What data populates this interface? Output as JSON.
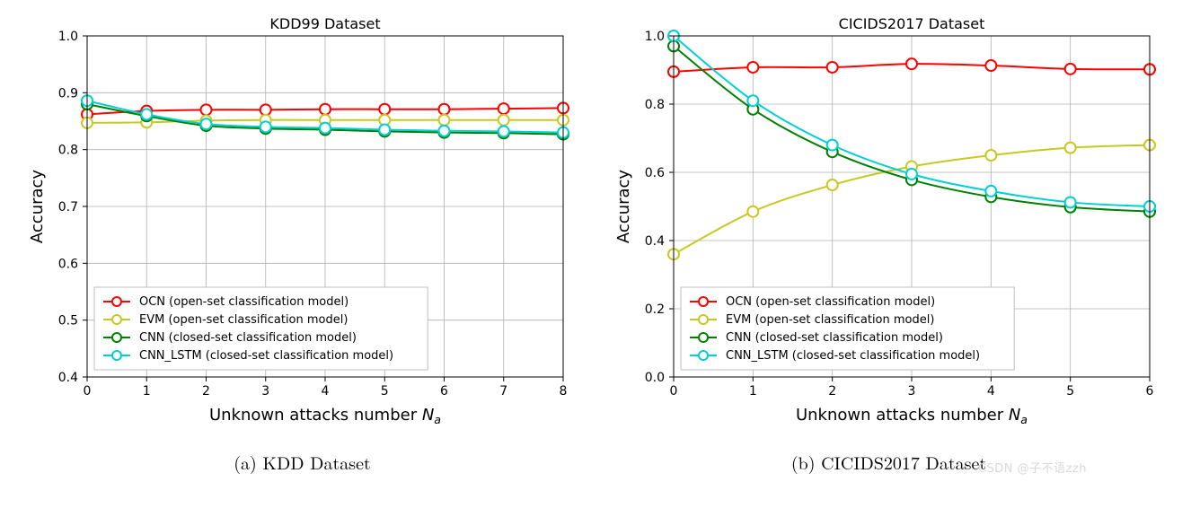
{
  "figure": {
    "background_color": "#ffffff",
    "panels": [
      {
        "id": "kdd",
        "title": "KDD99 Dataset",
        "caption": "(a) KDD Dataset",
        "xlabel_prefix": "Unknown attacks number ",
        "xlabel_var": "N",
        "xlabel_sub": "a",
        "ylabel": "Accuracy",
        "title_fontsize": 16,
        "label_fontsize": 18,
        "tick_fontsize": 14,
        "xlim": [
          0,
          8
        ],
        "ylim": [
          0.4,
          1.0
        ],
        "xticks": [
          0,
          1,
          2,
          3,
          4,
          5,
          6,
          7,
          8
        ],
        "yticks": [
          0.4,
          0.5,
          0.6,
          0.7,
          0.8,
          0.9,
          1.0
        ],
        "ytick_labels": [
          "0.4",
          "0.5",
          "0.6",
          "0.7",
          "0.8",
          "0.9",
          "1.0"
        ],
        "grid_color": "#b0b0b0",
        "grid_width": 0.8,
        "axis_color": "#000000",
        "legend": {
          "position": "lower-left",
          "border_color": "#bfbfbf",
          "background": "#ffffff",
          "fontsize": 13
        },
        "series": [
          {
            "name": "OCN (open-set classification model)",
            "color": "#ff0000",
            "marker": "circle-open",
            "line_width": 2,
            "marker_size": 6,
            "x": [
              0,
              1,
              2,
              3,
              4,
              5,
              6,
              7,
              8
            ],
            "y": [
              0.862,
              0.868,
              0.87,
              0.87,
              0.871,
              0.871,
              0.871,
              0.872,
              0.873
            ]
          },
          {
            "name": "EVM (open-set classification model)",
            "color": "#c8c822",
            "marker": "circle-open",
            "line_width": 2,
            "marker_size": 6,
            "x": [
              0,
              1,
              2,
              3,
              4,
              5,
              6,
              7,
              8
            ],
            "y": [
              0.847,
              0.848,
              0.851,
              0.852,
              0.852,
              0.852,
              0.852,
              0.852,
              0.852
            ]
          },
          {
            "name": "CNN (closed-set classification model)",
            "color": "#008000",
            "marker": "circle-open",
            "line_width": 2,
            "marker_size": 6,
            "x": [
              0,
              1,
              2,
              3,
              4,
              5,
              6,
              7,
              8
            ],
            "y": [
              0.88,
              0.859,
              0.842,
              0.837,
              0.835,
              0.832,
              0.83,
              0.829,
              0.827
            ]
          },
          {
            "name": "CNN_LSTM (closed-set classification model)",
            "color": "#00d0d4",
            "marker": "circle-open",
            "line_width": 2,
            "marker_size": 6,
            "x": [
              0,
              1,
              2,
              3,
              4,
              5,
              6,
              7,
              8
            ],
            "y": [
              0.886,
              0.862,
              0.845,
              0.84,
              0.838,
              0.835,
              0.833,
              0.832,
              0.83
            ]
          }
        ]
      },
      {
        "id": "cicids",
        "title": "CICIDS2017 Dataset",
        "caption": "(b) CICIDS2017 Dataset",
        "xlabel_prefix": "Unknown attacks number ",
        "xlabel_var": "N",
        "xlabel_sub": "a",
        "ylabel": "Accuracy",
        "title_fontsize": 16,
        "label_fontsize": 18,
        "tick_fontsize": 14,
        "xlim": [
          0,
          6
        ],
        "ylim": [
          0.0,
          1.0
        ],
        "xticks": [
          0,
          1,
          2,
          3,
          4,
          5,
          6
        ],
        "yticks": [
          0.0,
          0.2,
          0.4,
          0.6,
          0.8,
          1.0
        ],
        "ytick_labels": [
          "0.0",
          "0.2",
          "0.4",
          "0.6",
          "0.8",
          "1.0"
        ],
        "grid_color": "#b0b0b0",
        "grid_width": 0.8,
        "axis_color": "#000000",
        "legend": {
          "position": "lower-left",
          "border_color": "#bfbfbf",
          "background": "#ffffff",
          "fontsize": 13
        },
        "series": [
          {
            "name": "OCN (open-set classification model)",
            "color": "#ff0000",
            "marker": "circle-open",
            "line_width": 2,
            "marker_size": 6,
            "x": [
              0,
              1,
              2,
              3,
              4,
              5,
              6
            ],
            "y": [
              0.895,
              0.908,
              0.908,
              0.918,
              0.913,
              0.903,
              0.902
            ]
          },
          {
            "name": "EVM (open-set classification model)",
            "color": "#c8c822",
            "marker": "circle-open",
            "line_width": 2,
            "marker_size": 6,
            "x": [
              0,
              1,
              2,
              3,
              4,
              5,
              6
            ],
            "y": [
              0.36,
              0.485,
              0.563,
              0.617,
              0.65,
              0.672,
              0.68
            ]
          },
          {
            "name": "CNN (closed-set classification model)",
            "color": "#008000",
            "marker": "circle-open",
            "line_width": 2,
            "marker_size": 6,
            "x": [
              0,
              1,
              2,
              3,
              4,
              5,
              6
            ],
            "y": [
              0.97,
              0.785,
              0.66,
              0.578,
              0.528,
              0.498,
              0.485
            ]
          },
          {
            "name": "CNN_LSTM (closed-set classification model)",
            "color": "#00d0d4",
            "marker": "circle-open",
            "line_width": 2,
            "marker_size": 6,
            "x": [
              0,
              1,
              2,
              3,
              4,
              5,
              6
            ],
            "y": [
              1.0,
              0.81,
              0.68,
              0.595,
              0.545,
              0.512,
              0.5
            ]
          }
        ]
      }
    ],
    "watermark": "CSDN @子不语zzh"
  }
}
